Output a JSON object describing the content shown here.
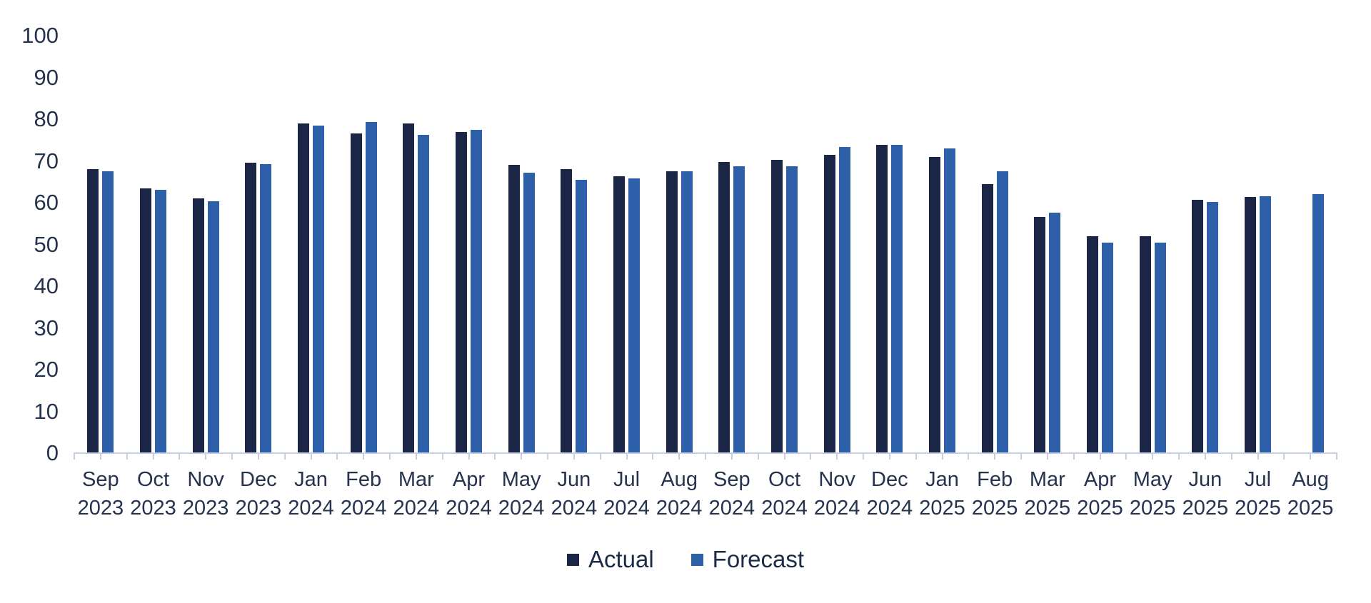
{
  "chart_data": {
    "type": "bar",
    "title": "",
    "xlabel": "",
    "ylabel": "",
    "ylim": [
      0,
      100
    ],
    "yticks": [
      0,
      10,
      20,
      30,
      40,
      50,
      60,
      70,
      80,
      90,
      100
    ],
    "grid": false,
    "legend_position": "bottom-center",
    "categories": [
      {
        "month": "Sep",
        "year": "2023"
      },
      {
        "month": "Oct",
        "year": "2023"
      },
      {
        "month": "Nov",
        "year": "2023"
      },
      {
        "month": "Dec",
        "year": "2023"
      },
      {
        "month": "Jan",
        "year": "2024"
      },
      {
        "month": "Feb",
        "year": "2024"
      },
      {
        "month": "Mar",
        "year": "2024"
      },
      {
        "month": "Apr",
        "year": "2024"
      },
      {
        "month": "May",
        "year": "2024"
      },
      {
        "month": "Jun",
        "year": "2024"
      },
      {
        "month": "Jul",
        "year": "2024"
      },
      {
        "month": "Aug",
        "year": "2024"
      },
      {
        "month": "Sep",
        "year": "2024"
      },
      {
        "month": "Oct",
        "year": "2024"
      },
      {
        "month": "Nov",
        "year": "2024"
      },
      {
        "month": "Dec",
        "year": "2024"
      },
      {
        "month": "Jan",
        "year": "2025"
      },
      {
        "month": "Feb",
        "year": "2025"
      },
      {
        "month": "Mar",
        "year": "2025"
      },
      {
        "month": "Apr",
        "year": "2025"
      },
      {
        "month": "May",
        "year": "2025"
      },
      {
        "month": "Jun",
        "year": "2025"
      },
      {
        "month": "Jul",
        "year": "2025"
      },
      {
        "month": "Aug",
        "year": "2025"
      }
    ],
    "series": [
      {
        "name": "Actual",
        "color": "#1b2647",
        "values": [
          68,
          63.5,
          61,
          69.5,
          79,
          76.5,
          79,
          77,
          69,
          68,
          66.3,
          67.5,
          69.8,
          70.3,
          71.5,
          73.8,
          71,
          64.5,
          56.6,
          52,
          52,
          60.6,
          61.4,
          null
        ]
      },
      {
        "name": "Forecast",
        "color": "#2e60a9",
        "values": [
          67.5,
          63,
          60.3,
          69.2,
          78.5,
          79.4,
          76.3,
          77.5,
          67.2,
          65.5,
          65.8,
          67.6,
          68.8,
          68.8,
          73.4,
          73.8,
          73,
          67.6,
          57.6,
          50.5,
          50.5,
          60.2,
          61.6,
          62
        ]
      }
    ]
  },
  "axis": {
    "line_color": "#c7cfe6",
    "text_color": "#26334f"
  }
}
